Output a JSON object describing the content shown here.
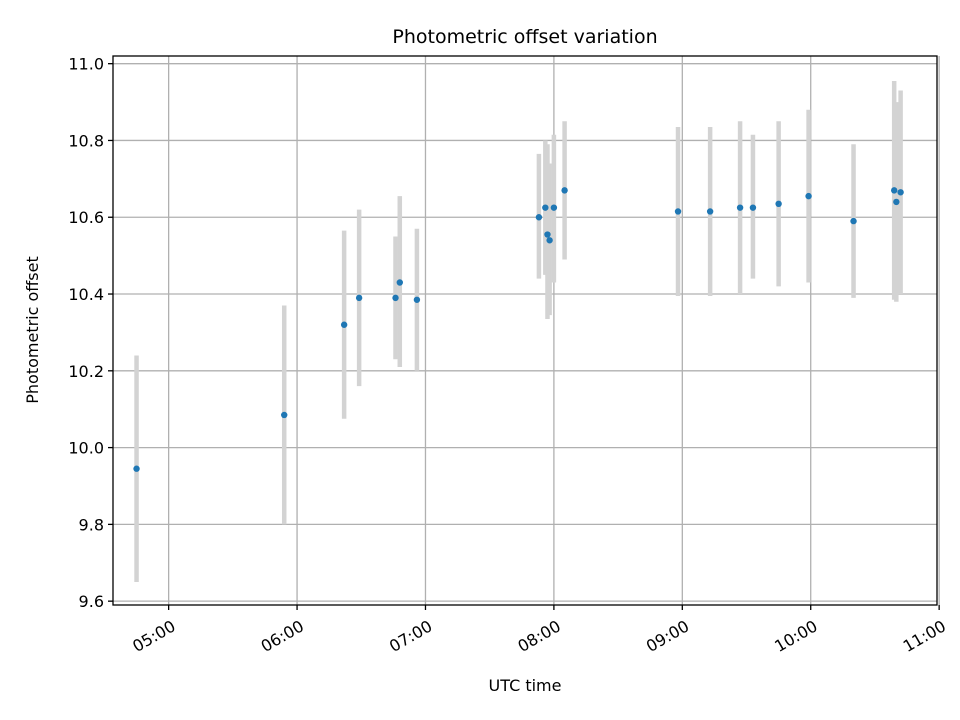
{
  "chart_data": {
    "type": "scatter",
    "title": "Photometric offset variation",
    "xlabel": "UTC time",
    "ylabel": "Photometric offset",
    "x_unit": "UTC time of day (HH:MM)",
    "xlim": [
      "04:34",
      "10:59"
    ],
    "ylim": [
      9.59,
      11.02
    ],
    "x_ticks": [
      "05:00",
      "06:00",
      "07:00",
      "08:00",
      "09:00",
      "10:00",
      "11:00"
    ],
    "y_ticks": [
      "9.6",
      "9.8",
      "10.0",
      "10.2",
      "10.4",
      "10.6",
      "10.8",
      "11.0"
    ],
    "grid": true,
    "point_color": "#1f77b4",
    "errorbar_color": "#d3d3d3",
    "points": [
      {
        "time": "04:45",
        "y": 9.945,
        "ylow": 9.65,
        "yhigh": 10.24
      },
      {
        "time": "05:54",
        "y": 10.085,
        "ylow": 9.8,
        "yhigh": 10.37
      },
      {
        "time": "06:22",
        "y": 10.32,
        "ylow": 10.075,
        "yhigh": 10.565
      },
      {
        "time": "06:29",
        "y": 10.39,
        "ylow": 10.16,
        "yhigh": 10.62
      },
      {
        "time": "06:46",
        "y": 10.39,
        "ylow": 10.23,
        "yhigh": 10.55
      },
      {
        "time": "06:48",
        "y": 10.43,
        "ylow": 10.21,
        "yhigh": 10.655
      },
      {
        "time": "06:56",
        "y": 10.385,
        "ylow": 10.2,
        "yhigh": 10.57
      },
      {
        "time": "07:53",
        "y": 10.6,
        "ylow": 10.44,
        "yhigh": 10.765
      },
      {
        "time": "07:56",
        "y": 10.625,
        "ylow": 10.45,
        "yhigh": 10.8
      },
      {
        "time": "07:57",
        "y": 10.555,
        "ylow": 10.335,
        "yhigh": 10.79
      },
      {
        "time": "07:58",
        "y": 10.54,
        "ylow": 10.345,
        "yhigh": 10.74
      },
      {
        "time": "08:00",
        "y": 10.625,
        "ylow": 10.43,
        "yhigh": 10.815
      },
      {
        "time": "08:05",
        "y": 10.67,
        "ylow": 10.49,
        "yhigh": 10.85
      },
      {
        "time": "08:58",
        "y": 10.615,
        "ylow": 10.395,
        "yhigh": 10.835
      },
      {
        "time": "09:13",
        "y": 10.615,
        "ylow": 10.395,
        "yhigh": 10.835
      },
      {
        "time": "09:27",
        "y": 10.625,
        "ylow": 10.4,
        "yhigh": 10.85
      },
      {
        "time": "09:33",
        "y": 10.625,
        "ylow": 10.44,
        "yhigh": 10.815
      },
      {
        "time": "09:45",
        "y": 10.635,
        "ylow": 10.42,
        "yhigh": 10.85
      },
      {
        "time": "09:59",
        "y": 10.655,
        "ylow": 10.43,
        "yhigh": 10.88
      },
      {
        "time": "10:20",
        "y": 10.59,
        "ylow": 10.39,
        "yhigh": 10.79
      },
      {
        "time": "10:39",
        "y": 10.67,
        "ylow": 10.385,
        "yhigh": 10.955
      },
      {
        "time": "10:40",
        "y": 10.64,
        "ylow": 10.38,
        "yhigh": 10.9
      },
      {
        "time": "10:42",
        "y": 10.665,
        "ylow": 10.4,
        "yhigh": 10.93
      }
    ]
  }
}
